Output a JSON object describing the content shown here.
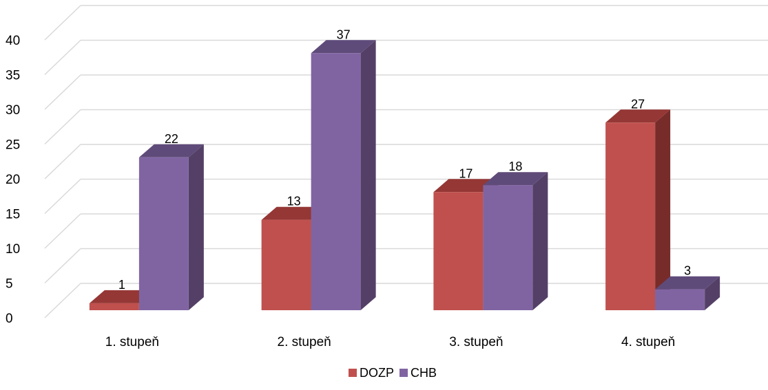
{
  "chart_data": {
    "type": "bar",
    "title": "",
    "xlabel": "",
    "ylabel": "",
    "categories": [
      "1. stupeň",
      "2. stupeň",
      "3. stupeň",
      "4. stupeň"
    ],
    "series": [
      {
        "name": "DOZP",
        "values": [
          1,
          13,
          17,
          27
        ],
        "color": "#c0504d",
        "top_color": "#953735",
        "side_color": "#772c2a"
      },
      {
        "name": "CHB",
        "values": [
          22,
          37,
          18,
          3
        ],
        "color": "#8064a2",
        "top_color": "#5f4b7a",
        "side_color": "#544066"
      }
    ],
    "ylim": [
      0,
      40
    ],
    "yticks": [
      0,
      5,
      10,
      15,
      20,
      25,
      30,
      35,
      40
    ],
    "grid": true,
    "legend_position": "bottom",
    "three_d": true
  }
}
